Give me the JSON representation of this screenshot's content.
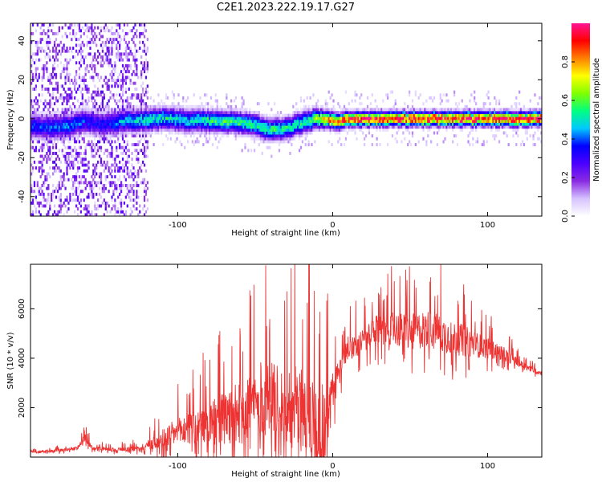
{
  "figure": {
    "title": "C2E1.2023.222.19.17.G27"
  },
  "chart_data": [
    {
      "type": "heatmap",
      "xlabel": "Height of straight line (km)",
      "ylabel": "Frequency (Hz)",
      "xlim": [
        -195,
        135
      ],
      "ylim": [
        -50,
        49
      ],
      "xticks": [
        -100,
        0,
        100
      ],
      "yticks": [
        -40,
        -20,
        0,
        20,
        40
      ],
      "colorbar": {
        "label": "Normalized spectral amplitude",
        "range": [
          0,
          1
        ],
        "ticks": [
          0.0,
          0.2,
          0.4,
          0.6,
          0.8
        ],
        "colormap": "hsv-reversed",
        "stops": [
          "#ffffff",
          "#d6c2ff",
          "#8a2be2",
          "#4b00ff",
          "#0000ff",
          "#00c8ff",
          "#00ff80",
          "#80ff00",
          "#ffff00",
          "#ff8000",
          "#ff0000",
          "#ff1493"
        ]
      },
      "frequency_ridge": {
        "x": [
          -185,
          -170,
          -160,
          -150,
          -130,
          -110,
          -90,
          -75,
          -60,
          -50,
          -40,
          -30,
          -20,
          -10,
          -5,
          0,
          5,
          10,
          20,
          40,
          60,
          80,
          100,
          120,
          135
        ],
        "y": [
          -4,
          -4,
          -1,
          -3,
          -1,
          0,
          -1,
          -1,
          -2,
          -3,
          -6,
          -5,
          -2,
          0,
          0,
          -1,
          -1,
          0,
          0,
          0,
          0,
          0,
          0,
          0,
          0
        ],
        "peak_amplitude": [
          0.4,
          0.45,
          0.4,
          0.35,
          0.5,
          0.55,
          0.5,
          0.6,
          0.6,
          0.55,
          0.6,
          0.55,
          0.55,
          0.7,
          0.8,
          0.9,
          0.9,
          1.0,
          1.0,
          1.0,
          1.0,
          1.0,
          1.0,
          1.0,
          1.0
        ]
      },
      "noise_region_x": [
        -195,
        -120
      ]
    },
    {
      "type": "line",
      "xlabel": "Height of straight line (km)",
      "ylabel": "SNR (10 * v/v)",
      "xlim": [
        -195,
        135
      ],
      "ylim": [
        0,
        7800
      ],
      "xticks": [
        -100,
        0,
        100
      ],
      "yticks": [
        2000,
        4000,
        6000
      ],
      "grid": false,
      "line_color": "#ee3333",
      "series": [
        {
          "x": [
            -195,
            -180,
            -165,
            -160,
            -155,
            -140,
            -125,
            -115,
            -105,
            -95,
            -85,
            -75,
            -65,
            -55,
            -45,
            -35,
            -25,
            -15,
            -10,
            -5,
            0,
            5,
            10,
            20,
            30,
            40,
            50,
            60,
            70,
            80,
            90,
            100,
            110,
            120,
            130,
            135
          ],
          "y": [
            200,
            250,
            350,
            800,
            350,
            300,
            350,
            600,
            900,
            1100,
            1200,
            1400,
            1600,
            2000,
            2400,
            2200,
            2000,
            1800,
            1400,
            1200,
            2600,
            3600,
            4400,
            4700,
            5200,
            5200,
            5000,
            5200,
            5000,
            4800,
            4600,
            4400,
            4200,
            3800,
            3500,
            3400
          ],
          "spread": [
            80,
            80,
            100,
            250,
            100,
            120,
            150,
            400,
            700,
            900,
            1100,
            1500,
            1700,
            2000,
            2200,
            2200,
            2400,
            2600,
            3000,
            2500,
            1200,
            800,
            700,
            700,
            900,
            1000,
            1100,
            1100,
            1100,
            1000,
            800,
            600,
            400,
            250,
            150,
            150
          ]
        }
      ]
    }
  ]
}
